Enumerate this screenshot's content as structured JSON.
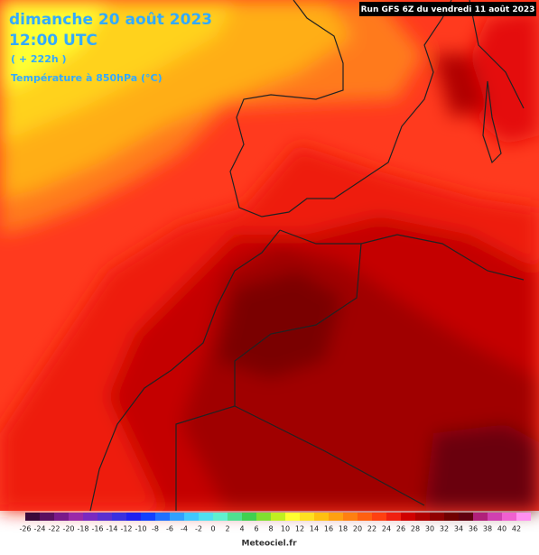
{
  "header": {
    "date": "dimanche 20 août 2023",
    "time": "12:00 UTC",
    "lead": "( + 222h )",
    "field": "Température à 850hPa (°C)"
  },
  "run": "Run GFS 6Z du vendredi 11 août 2023",
  "colorbar": {
    "ticks": [
      -26,
      -24,
      -22,
      -20,
      -18,
      -16,
      -14,
      -12,
      -10,
      -8,
      -6,
      -4,
      -2,
      0,
      2,
      4,
      6,
      8,
      10,
      12,
      14,
      16,
      18,
      20,
      22,
      24,
      26,
      28,
      30,
      32,
      34,
      36,
      38,
      40,
      42
    ]
  },
  "credit": "Meteociel.fr"
}
